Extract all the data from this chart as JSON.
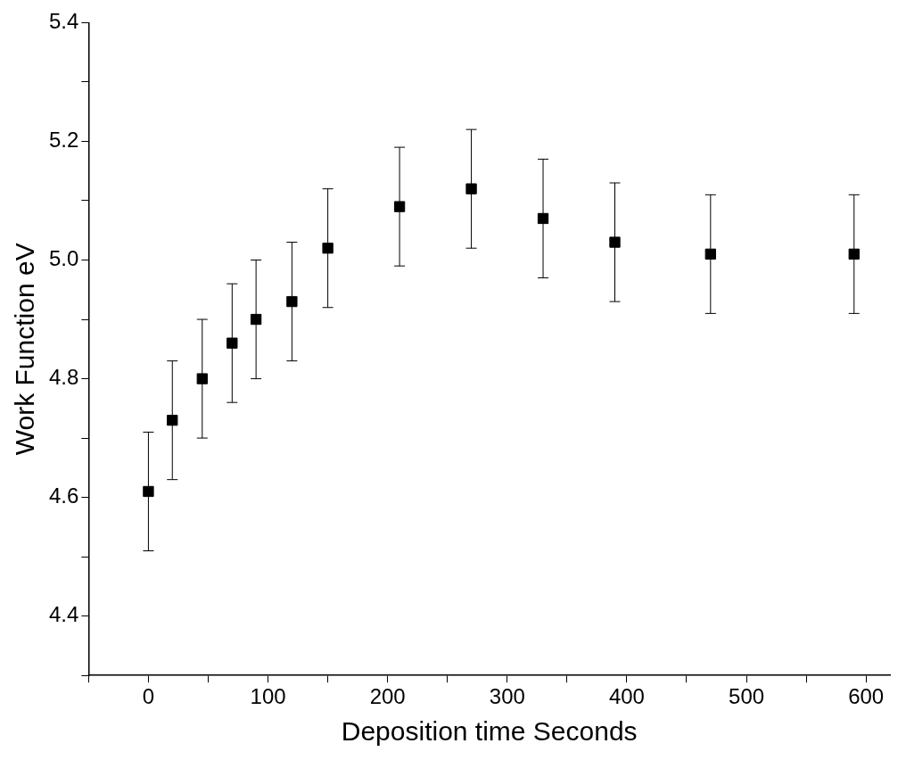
{
  "chart_data": {
    "type": "scatter",
    "xlabel": "Deposition time Seconds",
    "ylabel": "Work Function eV",
    "x": [
      0,
      20,
      45,
      70,
      90,
      120,
      150,
      210,
      270,
      330,
      390,
      470,
      590
    ],
    "values": [
      4.61,
      4.73,
      4.8,
      4.86,
      4.9,
      4.93,
      5.02,
      5.09,
      5.12,
      5.07,
      5.03,
      5.01,
      5.01
    ],
    "errors": [
      0.1,
      0.1,
      0.1,
      0.1,
      0.1,
      0.1,
      0.1,
      0.1,
      0.1,
      0.1,
      0.1,
      0.1,
      0.1
    ],
    "color": "#000000",
    "marker": "square",
    "grid": false,
    "legend": false,
    "xlim": [
      -50,
      620
    ],
    "xticks": [
      {
        "value": -50,
        "label": null
      },
      0,
      {
        "value": 50,
        "label": null
      },
      100,
      {
        "value": 150,
        "label": null
      },
      200,
      {
        "value": 250,
        "label": null
      },
      300,
      {
        "value": 350,
        "label": null
      },
      400,
      {
        "value": 450,
        "label": null
      },
      500,
      {
        "value": 550,
        "label": null
      },
      600
    ],
    "ylim": [
      4.3,
      5.4
    ],
    "yticks": [
      {
        "value": 4.3,
        "label": null
      },
      4.4,
      {
        "value": 4.5,
        "label": null
      },
      4.6,
      {
        "value": 4.7,
        "label": null
      },
      4.8,
      {
        "value": 4.9,
        "label": null
      },
      {
        "value": 5.0,
        "label": "5.0"
      },
      {
        "value": 5.1,
        "label": null
      },
      5.2,
      {
        "value": 5.3,
        "label": null
      },
      5.4
    ]
  }
}
